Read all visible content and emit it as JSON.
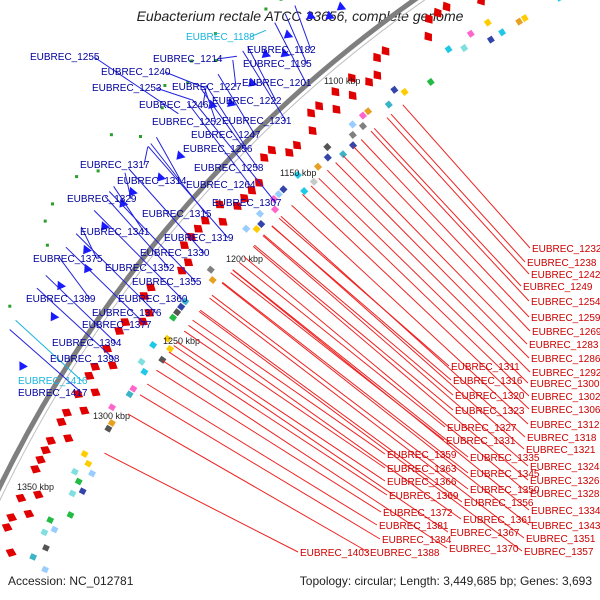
{
  "title": "Eubacterium rectale ATCC 33656, complete genome",
  "accession_text": "Accession: NC_012781",
  "topology_text": "Topology: circular; Length: 3,449,685 bp; Genes: 3,693",
  "colors": {
    "blue_label": "#00009c",
    "red_label": "#cc0000",
    "cyan_label": "#19b4de",
    "backbone": "#7f7f7f",
    "forward_gene": "#e00000",
    "reverse_gene": "#1a1aff",
    "marker_green": "#2aa02a"
  },
  "kbp_ticks": [
    "1100 kbp",
    "1150 kbp",
    "1200 kbp",
    "1250 kbp",
    "1300 kbp",
    "1350 kbp"
  ],
  "left_labels": [
    {
      "text": "EUBREC_1188",
      "color": "cyan"
    },
    {
      "text": "EUBREC_1182",
      "color": "blue"
    },
    {
      "text": "EUBREC_1255",
      "color": "blue"
    },
    {
      "text": "EUBREC_1214",
      "color": "blue"
    },
    {
      "text": "EUBREC_1195",
      "color": "blue"
    },
    {
      "text": "EUBREC_1240",
      "color": "blue"
    },
    {
      "text": "EUBREC_1201",
      "color": "blue"
    },
    {
      "text": "EUBREC_1253",
      "color": "blue"
    },
    {
      "text": "EUBREC_1227",
      "color": "blue"
    },
    {
      "text": "EUBREC_1222",
      "color": "blue"
    },
    {
      "text": "EUBREC_1246",
      "color": "blue"
    },
    {
      "text": "EUBREC_1252",
      "color": "blue"
    },
    {
      "text": "EUBREC_1231",
      "color": "blue"
    },
    {
      "text": "EUBREC_1247",
      "color": "blue"
    },
    {
      "text": "EUBREC_1256",
      "color": "blue"
    },
    {
      "text": "EUBREC_1258",
      "color": "blue"
    },
    {
      "text": "EUBREC_1317",
      "color": "blue"
    },
    {
      "text": "EUBREC_1314",
      "color": "blue"
    },
    {
      "text": "EUBREC_1264",
      "color": "blue"
    },
    {
      "text": "EUBREC_1329",
      "color": "blue"
    },
    {
      "text": "EUBREC_1307",
      "color": "blue"
    },
    {
      "text": "EUBREC_1315",
      "color": "blue"
    },
    {
      "text": "EUBREC_1341",
      "color": "blue"
    },
    {
      "text": "EUBREC_1319",
      "color": "blue"
    },
    {
      "text": "EUBREC_1330",
      "color": "blue"
    },
    {
      "text": "EUBREC_1375",
      "color": "blue"
    },
    {
      "text": "EUBREC_1352",
      "color": "blue"
    },
    {
      "text": "EUBREC_1355",
      "color": "blue"
    },
    {
      "text": "EUBREC_1389",
      "color": "blue"
    },
    {
      "text": "EUBREC_1360",
      "color": "blue"
    },
    {
      "text": "EUBREC_1376",
      "color": "blue"
    },
    {
      "text": "EUBREC_1377",
      "color": "blue"
    },
    {
      "text": "EUBREC_1394",
      "color": "blue"
    },
    {
      "text": "EUBREC_1398",
      "color": "blue"
    },
    {
      "text": "EUBREC_1416",
      "color": "cyan"
    },
    {
      "text": "EUBREC_1417",
      "color": "blue"
    }
  ],
  "right_labels": [
    "EUBREC_1232",
    "EUBREC_1238",
    "EUBREC_1242",
    "EUBREC_1249",
    "EUBREC_1254",
    "EUBREC_1259",
    "EUBREC_1269",
    "EUBREC_1283",
    "EUBREC_1286",
    "EUBREC_1292",
    "EUBREC_1311",
    "EUBREC_1300",
    "EUBREC_1316",
    "EUBREC_1302",
    "EUBREC_1320",
    "EUBREC_1306",
    "EUBREC_1323",
    "EUBREC_1312",
    "EUBREC_1327",
    "EUBREC_1318",
    "EUBREC_1331",
    "EUBREC_1321",
    "EUBREC_1359",
    "EUBREC_1335",
    "EUBREC_1363",
    "EUBREC_1345",
    "EUBREC_1324",
    "EUBREC_1366",
    "EUBREC_1326",
    "EUBREC_1350",
    "EUBREC_1369",
    "EUBREC_1328",
    "EUBREC_1356",
    "EUBREC_1372",
    "EUBREC_1334",
    "EUBREC_1361",
    "EUBREC_1381",
    "EUBREC_1343",
    "EUBREC_1367",
    "EUBREC_1384",
    "EUBREC_1351",
    "EUBREC_1370",
    "EUBREC_1403",
    "EUBREC_1388",
    "EUBREC_1357"
  ]
}
